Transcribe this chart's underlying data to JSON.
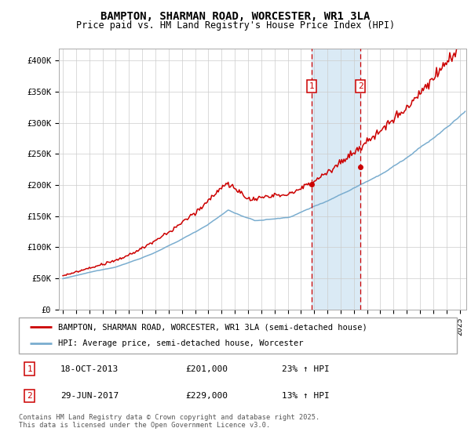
{
  "title": "BAMPTON, SHARMAN ROAD, WORCESTER, WR1 3LA",
  "subtitle": "Price paid vs. HM Land Registry's House Price Index (HPI)",
  "ylabel_ticks": [
    "£0",
    "£50K",
    "£100K",
    "£150K",
    "£200K",
    "£250K",
    "£300K",
    "£350K",
    "£400K"
  ],
  "ytick_values": [
    0,
    50000,
    100000,
    150000,
    200000,
    250000,
    300000,
    350000,
    400000
  ],
  "ylim": [
    0,
    420000
  ],
  "xlim_start": 1994.7,
  "xlim_end": 2025.5,
  "sale1_x": 2013.79,
  "sale1_y": 201000,
  "sale2_x": 2017.49,
  "sale2_y": 229000,
  "legend_line1": "BAMPTON, SHARMAN ROAD, WORCESTER, WR1 3LA (semi-detached house)",
  "legend_line2": "HPI: Average price, semi-detached house, Worcester",
  "annotation1_label": "18-OCT-2013",
  "annotation1_price": "£201,000",
  "annotation1_hpi": "23% ↑ HPI",
  "annotation2_label": "29-JUN-2017",
  "annotation2_price": "£229,000",
  "annotation2_hpi": "13% ↑ HPI",
  "red_color": "#cc0000",
  "blue_color": "#7aadcf",
  "shade_color": "#daeaf5",
  "footer": "Contains HM Land Registry data © Crown copyright and database right 2025.\nThis data is licensed under the Open Government Licence v3.0.",
  "background_color": "#ffffff",
  "grid_color": "#cccccc"
}
